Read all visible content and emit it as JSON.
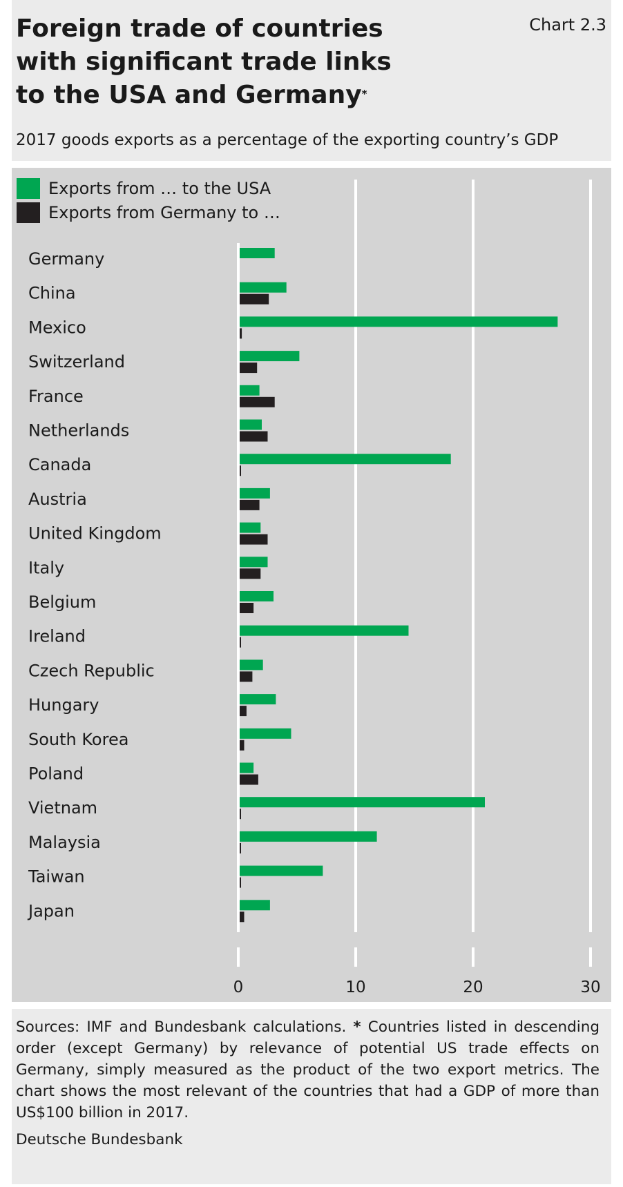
{
  "header": {
    "title_lines": [
      "Foreign trade of countries",
      "with significant trade links",
      "to the USA and Germany"
    ],
    "title_marker": "*",
    "chart_number": "Chart 2.3",
    "subtitle": "2017 goods exports as a percentage of the exporting country’s GDP"
  },
  "colors": {
    "green": "#00a651",
    "black": "#231f20",
    "plot_bg": "#d4d4d4",
    "panel_bg": "#ebebeb"
  },
  "chart_data": {
    "type": "bar",
    "orientation": "horizontal",
    "categories": [
      "Germany",
      "China",
      "Mexico",
      "Switzerland",
      "France",
      "Netherlands",
      "Canada",
      "Austria",
      "United Kingdom",
      "Italy",
      "Belgium",
      "Ireland",
      "Czech Republic",
      "Hungary",
      "South Korea",
      "Poland",
      "Vietnam",
      "Malaysia",
      "Taiwan",
      "Japan"
    ],
    "series": [
      {
        "name": "Exports from … to the USA",
        "color": "#00a651",
        "values": [
          3.1,
          4.1,
          27.2,
          5.2,
          1.8,
          2.0,
          18.1,
          2.7,
          1.9,
          2.5,
          3.0,
          14.5,
          2.1,
          3.2,
          4.5,
          1.3,
          21.0,
          11.8,
          7.2,
          2.7
        ]
      },
      {
        "name": "Exports from Germany to …",
        "color": "#231f20",
        "values": [
          null,
          2.6,
          0.3,
          1.6,
          3.1,
          2.5,
          0.2,
          1.8,
          2.5,
          1.9,
          1.3,
          0.2,
          1.2,
          0.7,
          0.5,
          1.7,
          0.2,
          0.2,
          0.2,
          0.5
        ]
      }
    ],
    "xlim": [
      0,
      30
    ],
    "xticks": [
      "0",
      "10",
      "20",
      "30"
    ],
    "grid": true,
    "legend_position": "top-left"
  },
  "footer": {
    "note_prefix": "Sources: IMF and Bundesbank calculations. ",
    "note_marker": "*",
    "note_text": " Countries listed in descending order (except Germany) by relevance of potential US trade effects on Germany, simply measured as the product of the two export metrics. The chart shows the most relevant of the countries that had a GDP of more than US$100 billion in 2017.",
    "source": "Deutsche Bundesbank"
  }
}
